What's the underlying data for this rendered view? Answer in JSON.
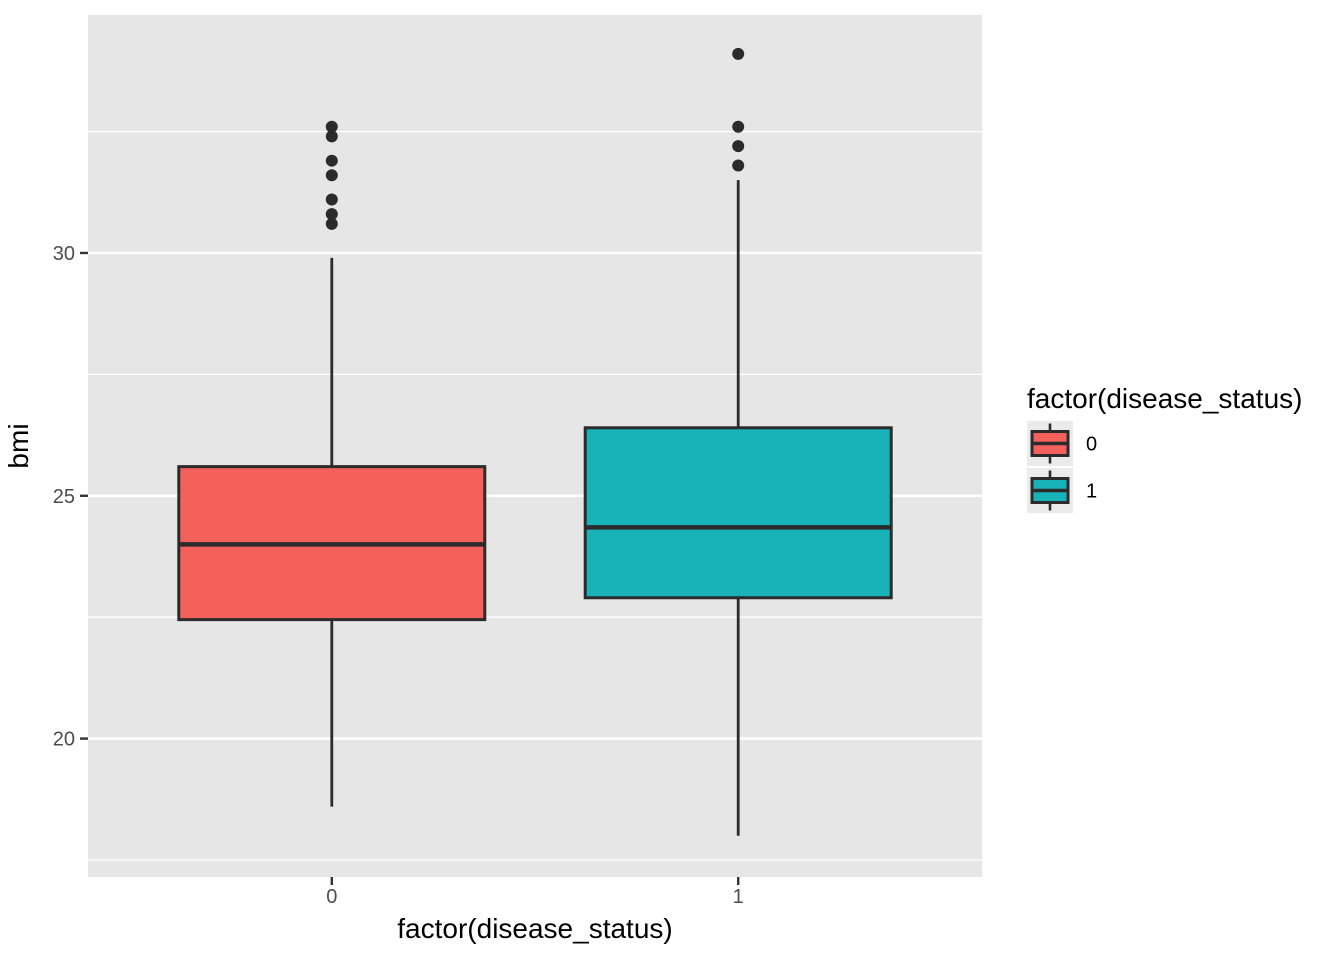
{
  "chart_data": {
    "type": "boxplot",
    "title": "",
    "xlabel": "factor(disease_status)",
    "ylabel": "bmi",
    "categories": [
      "0",
      "1"
    ],
    "y_axis": {
      "major_ticks": [
        20,
        25,
        30
      ],
      "minor_ticks": [
        17.5,
        22.5,
        27.5,
        32.5
      ],
      "range": [
        17.15,
        34.9
      ],
      "grid": true
    },
    "legend": {
      "title": "factor(disease_status)",
      "position": "right",
      "entries": [
        {
          "label": "0",
          "color": "#F4605C"
        },
        {
          "label": "1",
          "color": "#17B3B9"
        }
      ]
    },
    "series": [
      {
        "name": "0",
        "fill": "#F4605C",
        "whisker_low": 18.6,
        "q1": 22.45,
        "median": 24.0,
        "q3": 25.6,
        "whisker_high": 29.9,
        "outliers": [
          30.6,
          30.8,
          31.1,
          31.6,
          31.9,
          32.4,
          32.6
        ]
      },
      {
        "name": "1",
        "fill": "#17B3B9",
        "whisker_low": 18.0,
        "q1": 22.9,
        "median": 24.35,
        "q3": 26.4,
        "whisker_high": 31.5,
        "outliers": [
          31.8,
          32.2,
          32.6,
          34.1
        ]
      }
    ],
    "style": {
      "panel_bg": "#E6E6E6",
      "grid_color": "#FFFFFF",
      "line_color": "#2B2B2B",
      "tick_mark_color": "#333333",
      "tick_label_color": "#4D4D4D",
      "axis_title_color": "#000000",
      "legend_key_bg": "#EBEBEB"
    }
  }
}
